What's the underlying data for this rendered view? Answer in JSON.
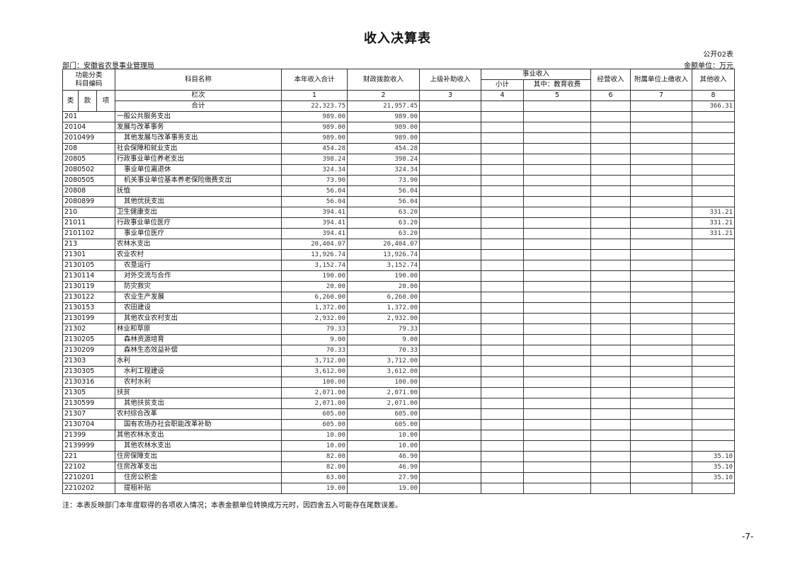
{
  "title": "收入决算表",
  "form_no": "公开02表",
  "department": "部门：安徽省农垦事业管理局",
  "unit": "金额单位：万元",
  "headers": {
    "func_code": "功能分类",
    "func_code2": "科目编码",
    "name": "科目名称",
    "total": "本年收入合计",
    "fiscal": "财政拨款收入",
    "superior": "上级补助收入",
    "business": "事业收入",
    "subtotal": "小计",
    "edu": "其中：教育收费",
    "operating": "经营收入",
    "affiliated": "附属单位上缴收入",
    "other": "其他收入",
    "lei": "类",
    "kuan": "款",
    "xiang": "项",
    "col_label": "栏次",
    "col_nums": [
      "1",
      "2",
      "3",
      "4",
      "5",
      "6",
      "7",
      "8"
    ],
    "sum_label": "合计"
  },
  "totals": {
    "total": "22,323.75",
    "fiscal": "21,957.45",
    "other": "366.31"
  },
  "rows": [
    [
      "201",
      "一般公共服务支出",
      "989.00",
      "989.00",
      ""
    ],
    [
      "20104",
      "发展与改革事务",
      "989.00",
      "989.00",
      ""
    ],
    [
      "2010499",
      "其他发展与改革事务支出",
      "989.00",
      "989.00",
      ""
    ],
    [
      "208",
      "社会保障和就业支出",
      "454.28",
      "454.28",
      ""
    ],
    [
      "20805",
      "行政事业单位养老支出",
      "398.24",
      "398.24",
      ""
    ],
    [
      "2080502",
      "事业单位离退休",
      "324.34",
      "324.34",
      ""
    ],
    [
      "2080505",
      "机关事业单位基本养老保险缴费支出",
      "73.90",
      "73.90",
      ""
    ],
    [
      "20808",
      "抚恤",
      "56.04",
      "56.04",
      ""
    ],
    [
      "2080899",
      "其他优抚支出",
      "56.04",
      "56.04",
      ""
    ],
    [
      "210",
      "卫生健康支出",
      "394.41",
      "63.20",
      "331.21"
    ],
    [
      "21011",
      "行政事业单位医疗",
      "394.41",
      "63.20",
      "331.21"
    ],
    [
      "2101102",
      "事业单位医疗",
      "394.41",
      "63.20",
      "331.21"
    ],
    [
      "213",
      "农林水支出",
      "20,404.07",
      "20,404.07",
      ""
    ],
    [
      "21301",
      "农业农村",
      "13,926.74",
      "13,926.74",
      ""
    ],
    [
      "2130105",
      "农垦运行",
      "3,152.74",
      "3,152.74",
      ""
    ],
    [
      "2130114",
      "对外交流与合作",
      "190.00",
      "190.00",
      ""
    ],
    [
      "2130119",
      "防灾救灾",
      "20.00",
      "20.00",
      ""
    ],
    [
      "2130122",
      "农业生产发展",
      "6,260.00",
      "6,260.00",
      ""
    ],
    [
      "2130153",
      "农田建设",
      "1,372.00",
      "1,372.00",
      ""
    ],
    [
      "2130199",
      "其他农业农村支出",
      "2,932.00",
      "2,932.00",
      ""
    ],
    [
      "21302",
      "林业和草原",
      "79.33",
      "79.33",
      ""
    ],
    [
      "2130205",
      "森林资源培育",
      "9.00",
      "9.00",
      ""
    ],
    [
      "2130209",
      "森林生态效益补偿",
      "70.33",
      "70.33",
      ""
    ],
    [
      "21303",
      "水利",
      "3,712.00",
      "3,712.00",
      ""
    ],
    [
      "2130305",
      "水利工程建设",
      "3,612.00",
      "3,612.00",
      ""
    ],
    [
      "2130316",
      "农村水利",
      "100.00",
      "100.00",
      ""
    ],
    [
      "21305",
      "扶贫",
      "2,071.00",
      "2,071.00",
      ""
    ],
    [
      "2130599",
      "其他扶贫支出",
      "2,071.00",
      "2,071.00",
      ""
    ],
    [
      "21307",
      "农村综合改革",
      "605.00",
      "605.00",
      ""
    ],
    [
      "2130704",
      "国有农场办社会职能改革补助",
      "605.00",
      "605.00",
      ""
    ],
    [
      "21399",
      "其他农林水支出",
      "10.00",
      "10.00",
      ""
    ],
    [
      "2139999",
      "其他农林水支出",
      "10.00",
      "10.00",
      ""
    ],
    [
      "221",
      "住房保障支出",
      "82.00",
      "46.90",
      "35.10"
    ],
    [
      "22102",
      "住房改革支出",
      "82.00",
      "46.90",
      "35.10"
    ],
    [
      "2210201",
      "住房公积金",
      "63.00",
      "27.90",
      "35.10"
    ],
    [
      "2210202",
      "提租补贴",
      "19.00",
      "19.00",
      ""
    ]
  ],
  "note": "注：本表反映部门本年度取得的各项收入情况；本表金额单位转换成万元时，因四舍五入可能存在尾数误差。",
  "page_number": "-7-"
}
